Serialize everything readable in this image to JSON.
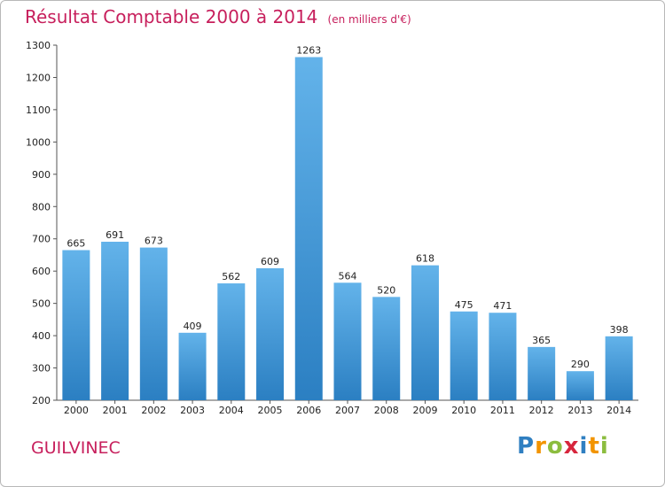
{
  "header": {
    "title": "Résultat Comptable 2000 à 2014",
    "subtitle": "(en milliers d'€)"
  },
  "footer": {
    "commune": "GUILVINEC",
    "logo": [
      {
        "ch": "P",
        "color": "#2f7fc1"
      },
      {
        "ch": "r",
        "color": "#f29400"
      },
      {
        "ch": "o",
        "color": "#8cbd3f"
      },
      {
        "ch": "x",
        "color": "#d7263d"
      },
      {
        "ch": "i",
        "color": "#2f7fc1"
      },
      {
        "ch": "t",
        "color": "#f29400"
      },
      {
        "ch": "i",
        "color": "#8cbd3f"
      }
    ]
  },
  "colors": {
    "bar_light": "#63b3ea",
    "bar_dark": "#2b7fc2",
    "title": "#c71f5c",
    "axis": "#555555"
  },
  "chart_data": {
    "type": "bar",
    "title": "Résultat Comptable 2000 à 2014",
    "subtitle": "(en milliers d'€)",
    "xlabel": "",
    "ylabel": "",
    "categories": [
      "2000",
      "2001",
      "2002",
      "2003",
      "2004",
      "2005",
      "2006",
      "2007",
      "2008",
      "2009",
      "2010",
      "2011",
      "2012",
      "2013",
      "2014"
    ],
    "values": [
      665,
      691,
      673,
      409,
      562,
      609,
      1263,
      564,
      520,
      618,
      475,
      471,
      365,
      290,
      398
    ],
    "ylim": [
      200,
      1300
    ],
    "yticks": [
      200,
      300,
      400,
      500,
      600,
      700,
      800,
      900,
      1000,
      1100,
      1200,
      1300
    ],
    "grid": false,
    "data_labels": true
  }
}
